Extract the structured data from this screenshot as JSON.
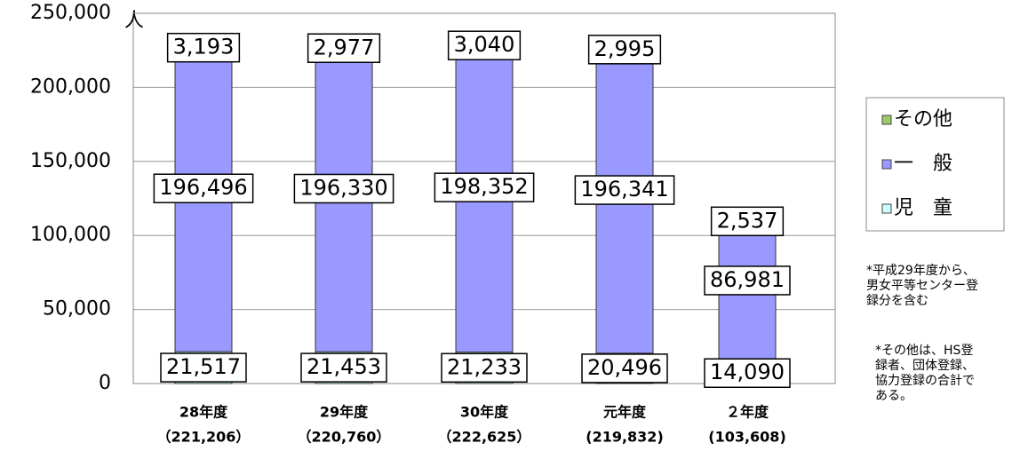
{
  "chart_data": {
    "type": "stacked_bar",
    "unit": "人",
    "categories": [
      [
        "28年度",
        "（221,206）"
      ],
      [
        "29年度",
        "（220,760）"
      ],
      [
        "30年度",
        "（222,625）"
      ],
      [
        "元年度",
        "(219,832)"
      ],
      [
        "２年度",
        "(103,608)"
      ]
    ],
    "series": [
      {
        "name": "児　童",
        "color": "#ccffff",
        "values": [
          21517,
          21453,
          21233,
          20496,
          14090
        ]
      },
      {
        "name": "一　般",
        "color": "#9999ff",
        "values": [
          196496,
          196330,
          198352,
          196341,
          86981
        ]
      },
      {
        "name": "その他",
        "color": "#99cc66",
        "values": [
          3193,
          2977,
          3040,
          2995,
          2537
        ]
      }
    ],
    "value_labels": [
      [
        "21,517",
        "21,453",
        "21,233",
        "20,496",
        "14,090"
      ],
      [
        "196,496",
        "196,330",
        "198,352",
        "196,341",
        "86,981"
      ],
      [
        "3,193",
        "2,977",
        "3,040",
        "2,995",
        "2,537"
      ]
    ],
    "ylim": [
      0,
      250000
    ],
    "yticks": [
      {
        "value": 0,
        "label": "0"
      },
      {
        "value": 50000,
        "label": "50,000"
      },
      {
        "value": 100000,
        "label": "100,000"
      },
      {
        "value": 150000,
        "label": "150,000"
      },
      {
        "value": 200000,
        "label": "200,000"
      },
      {
        "value": 250000,
        "label": "250,000"
      }
    ],
    "grid": true,
    "notes": [
      [
        "*平成29年度から、",
        "男女平等センター登",
        "録分を含む"
      ],
      [
        "*その他は、HS登",
        "録者、団体登録、",
        "協力登録の合計で",
        "ある。"
      ]
    ]
  }
}
